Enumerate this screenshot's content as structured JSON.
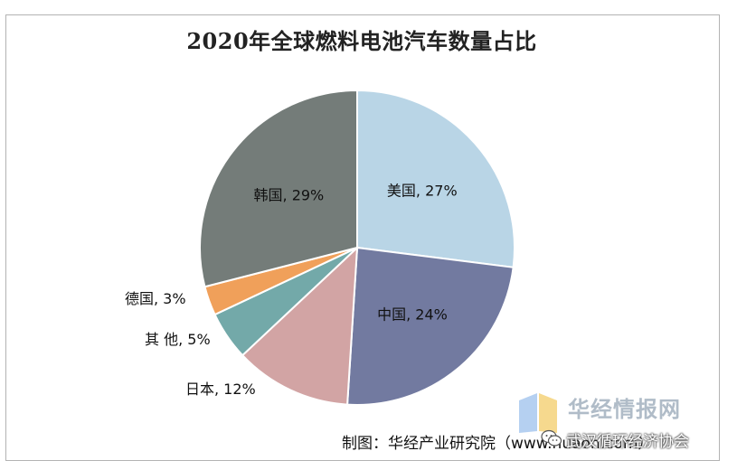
{
  "chart_data": {
    "type": "pie",
    "title": "2020年全球燃料电池汽车数量占比",
    "slices": [
      {
        "label": "美国",
        "value": 27,
        "display": "美国, 27%",
        "color": "#b9d5e6"
      },
      {
        "label": "中国",
        "value": 24,
        "display": "中国, 24%",
        "color": "#727aa0"
      },
      {
        "label": "日本",
        "value": 12,
        "display": "日本, 12%",
        "color": "#d2a4a4"
      },
      {
        "label": "其他",
        "value": 5,
        "display": "其 他, 5%",
        "color": "#73a9a9"
      },
      {
        "label": "德国",
        "value": 3,
        "display": "德国, 3%",
        "color": "#f0a05a"
      },
      {
        "label": "韩国",
        "value": 29,
        "display": "韩国, 29%",
        "color": "#747c79"
      }
    ],
    "label_positions": [
      "inside",
      "inside",
      "outside",
      "outside",
      "outside",
      "inside"
    ],
    "start_angle_deg": 0,
    "direction": "clockwise"
  },
  "credit": "制图：华经产业研究院（www.huaon.com）",
  "watermark": {
    "brand": "华经情报网",
    "account": "武汉循环经济协会",
    "logo_colors": [
      "#a8c8ee",
      "#f4d27a"
    ],
    "icon": "wechat-icon"
  }
}
